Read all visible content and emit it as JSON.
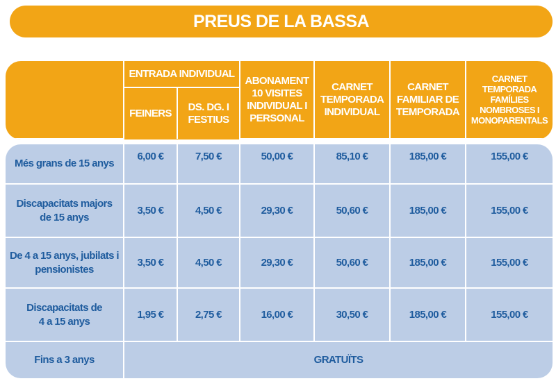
{
  "title": "PREUS DE LA BASSA",
  "header": {
    "entrada": "ENTRADA INDIVIDUAL",
    "feiners": "FEINERS",
    "festius": "DS. DG. I FESTIUS",
    "abonament": "ABONAMENT 10 VISITES INDIVIDUAL I PERSONAL",
    "carnet_temporada": "CARNET TEMPORADA INDIVIDUAL",
    "carnet_familiar": "CARNET FAMILIAR DE TEMPORADA",
    "carnet_families": "CARNET TEMPORADA FAMÍLIES NOMBROSES I MONOPARENTALS"
  },
  "rows": [
    {
      "label": "Més grans de 15 anys",
      "values": [
        "6,00 €",
        "7,50 €",
        "50,00 €",
        "85,10 €",
        "185,00 €",
        "155,00 €"
      ]
    },
    {
      "label": "Discapacitats majors de 15 anys",
      "values": [
        "3,50 €",
        "4,50 €",
        "29,30 €",
        "50,60 €",
        "185,00 €",
        "155,00 €"
      ]
    },
    {
      "label": "De 4 a 15 anys, jubilats i pensionistes",
      "values": [
        "3,50 €",
        "4,50 €",
        "29,30 €",
        "50,60 €",
        "185,00 €",
        "155,00 €"
      ]
    },
    {
      "label": "Discapacitats de 4 a 15 anys",
      "values": [
        "1,95 €",
        "2,75 €",
        "16,00 €",
        "30,50 €",
        "185,00 €",
        "155,00 €"
      ]
    }
  ],
  "last_row": {
    "label": "Fins a 3 anys",
    "value": "GRATUÏTS"
  },
  "colors": {
    "orange": "#f2a516",
    "blue_bg": "#bccde6",
    "blue_text": "#1f5c9e"
  }
}
